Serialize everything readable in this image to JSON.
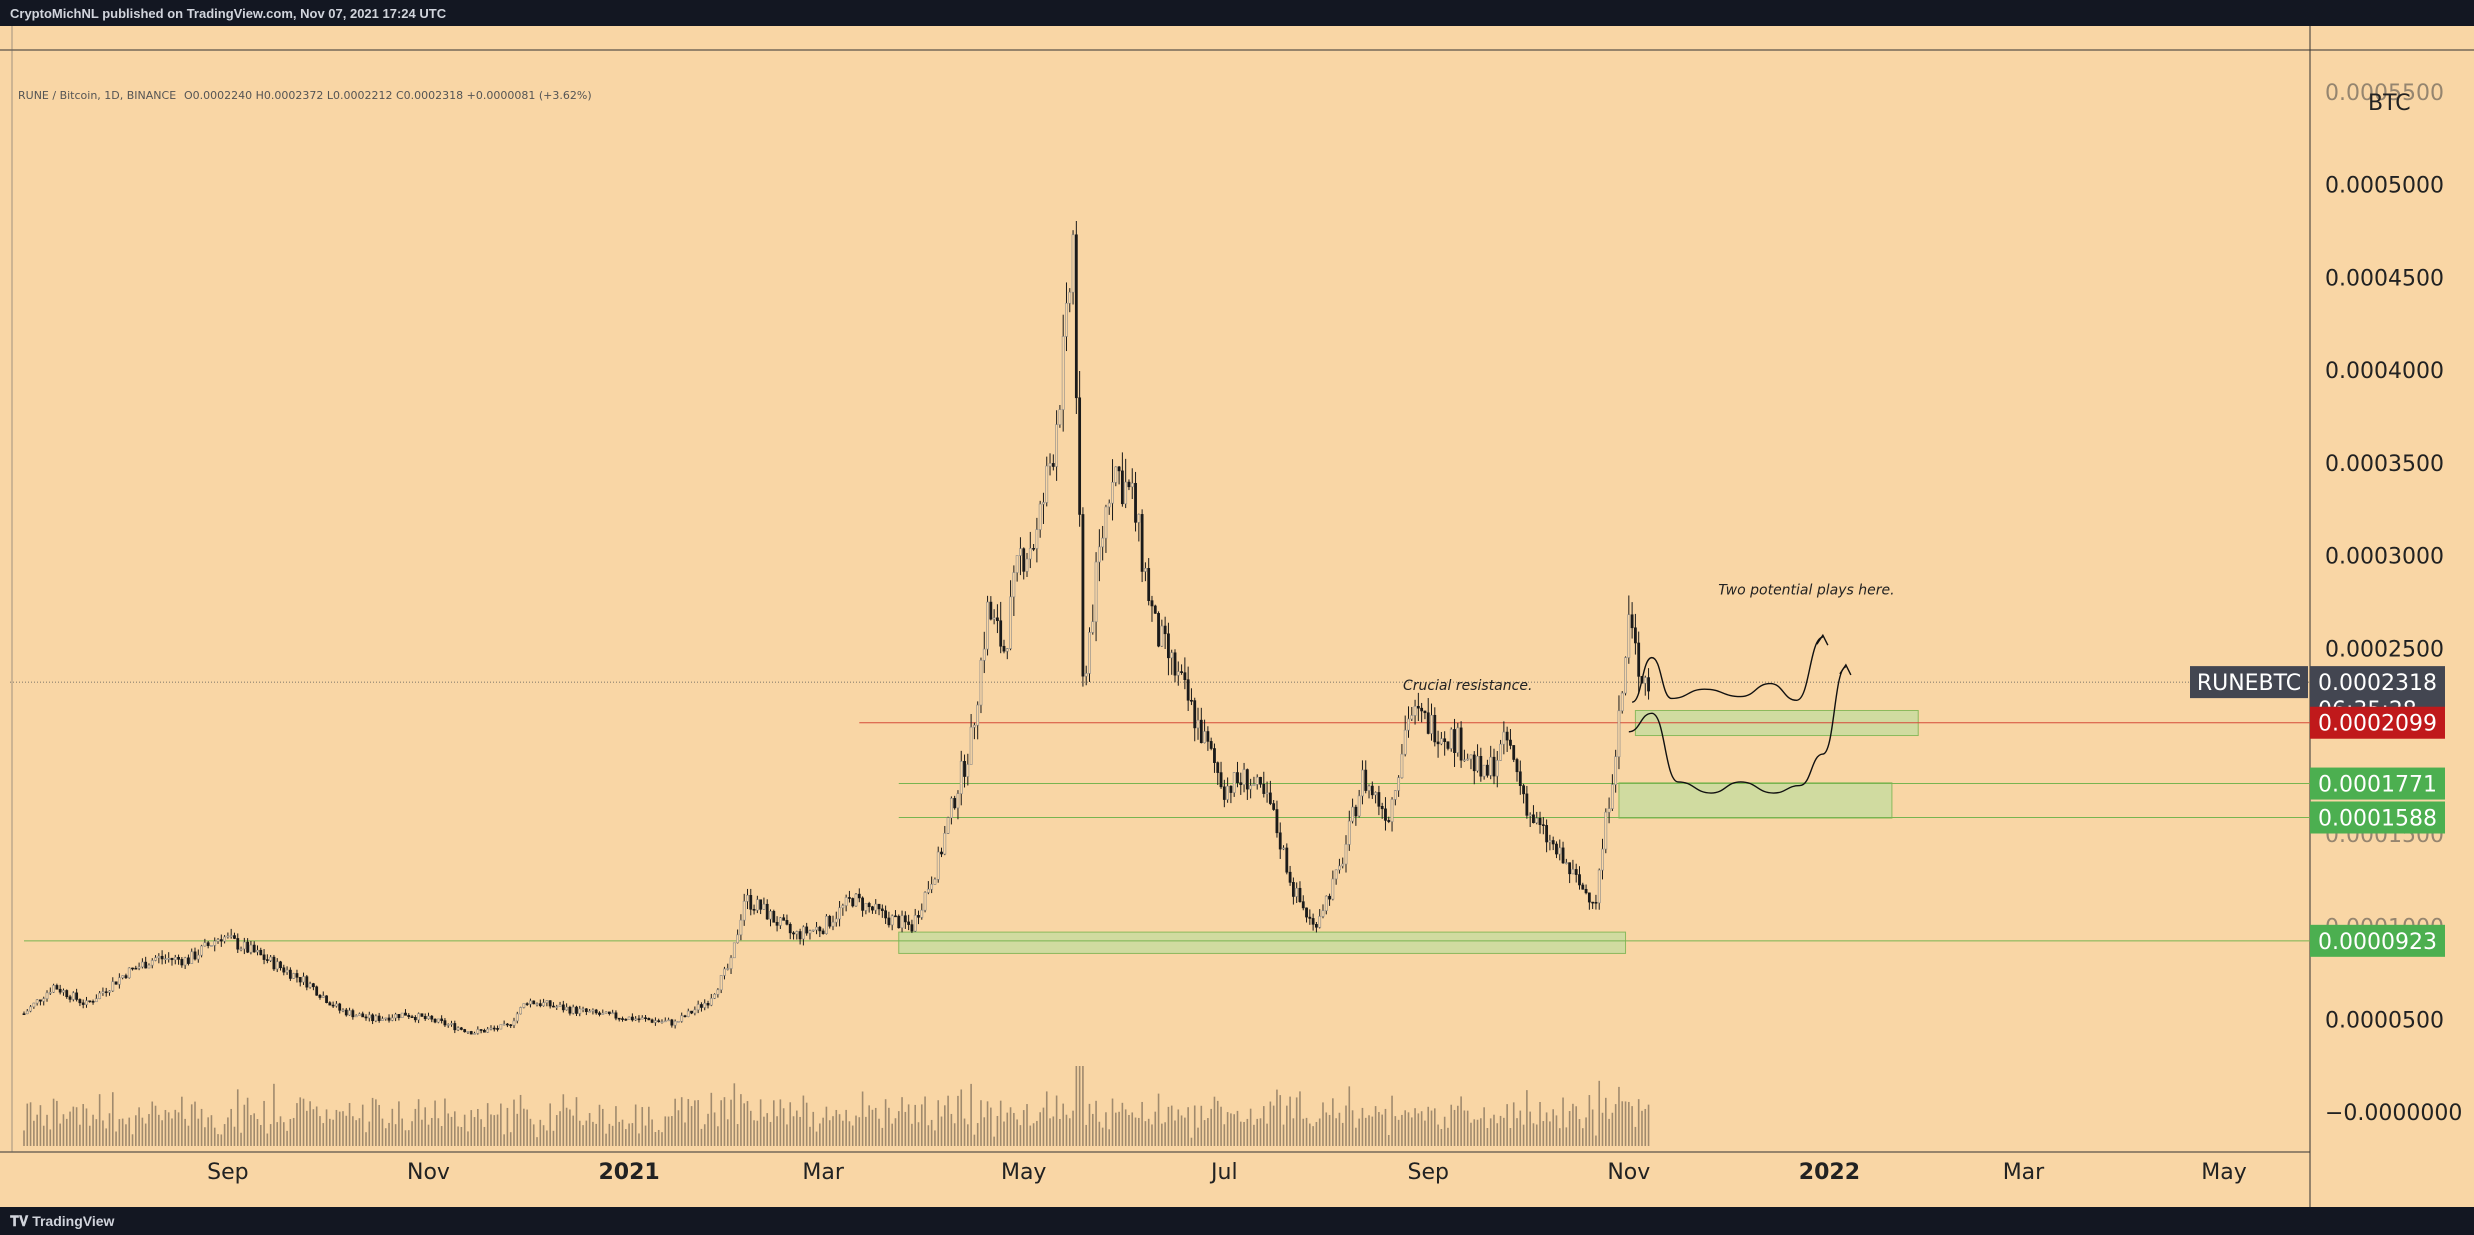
{
  "header": {
    "published_by": "CryptoMichNL published on TradingView.com, Nov 07, 2021 17:24 UTC"
  },
  "footer": {
    "brand": "TradingView",
    "logo_icon": "tradingview-logo-icon"
  },
  "legend": {
    "symbol": "RUNE / Bitcoin, 1D, BINANCE",
    "ohlc": [
      {
        "k": "O",
        "v": "0.0002240"
      },
      {
        "k": "H",
        "v": "0.0002372"
      },
      {
        "k": "L",
        "v": "0.0002212"
      },
      {
        "k": "C",
        "v": "0.0002318"
      }
    ],
    "change": "+0.0000081 (+3.62%)"
  },
  "colors": {
    "background": "#f9d6a5",
    "candle": "#1a1a1a",
    "candle_light": "#8a8a8a",
    "support_zone": "#c9dca0",
    "support_line": "#78b450",
    "resistance_line": "#d64b3a",
    "label_dark": "#434651",
    "label_red": "#c0191b",
    "label_green": "#4caf50"
  },
  "chart_data": {
    "type": "candlestick",
    "symbol": "RUNEBTC",
    "yunit": "BTC",
    "ylim": [
      -2e-05,
      0.00055
    ],
    "yticks": [
      "0.0005000",
      "0.0004500",
      "0.0004000",
      "0.0003500",
      "0.0003000",
      "0.0002500",
      "0.0000500",
      "−0.0000000"
    ],
    "partial_tick_labels": [
      "0.0005500",
      "0.0001500",
      "0.0001000"
    ],
    "x_start": "2020-07-01",
    "x_end": "2022-06-01",
    "xticks": [
      {
        "label": "Sep",
        "date": "2020-09-01",
        "bold": false
      },
      {
        "label": "Nov",
        "date": "2020-11-01",
        "bold": false
      },
      {
        "label": "2021",
        "date": "2021-01-01",
        "bold": true
      },
      {
        "label": "Mar",
        "date": "2021-03-01",
        "bold": false
      },
      {
        "label": "May",
        "date": "2021-05-01",
        "bold": false
      },
      {
        "label": "Jul",
        "date": "2021-07-01",
        "bold": false
      },
      {
        "label": "Sep",
        "date": "2021-09-01",
        "bold": false
      },
      {
        "label": "Nov",
        "date": "2021-11-01",
        "bold": false
      },
      {
        "label": "2022",
        "date": "2022-01-01",
        "bold": true
      },
      {
        "label": "Mar",
        "date": "2022-03-01",
        "bold": false
      },
      {
        "label": "May",
        "date": "2022-05-01",
        "bold": false
      }
    ],
    "price_path": [
      [
        "2020-07-01",
        5.3e-05
      ],
      [
        "2020-07-10",
        6.8e-05
      ],
      [
        "2020-07-20",
        5.8e-05
      ],
      [
        "2020-08-01",
        7.5e-05
      ],
      [
        "2020-08-10",
        8.3e-05
      ],
      [
        "2020-08-20",
        8.2e-05
      ],
      [
        "2020-08-30",
        9.5e-05
      ],
      [
        "2020-09-10",
        8.5e-05
      ],
      [
        "2020-09-25",
        7e-05
      ],
      [
        "2020-10-05",
        5.5e-05
      ],
      [
        "2020-10-15",
        5e-05
      ],
      [
        "2020-10-25",
        5.3e-05
      ],
      [
        "2020-11-05",
        4.8e-05
      ],
      [
        "2020-11-15",
        4.3e-05
      ],
      [
        "2020-11-25",
        4.6e-05
      ],
      [
        "2020-12-01",
        6e-05
      ],
      [
        "2020-12-15",
        5.5e-05
      ],
      [
        "2020-12-25",
        5.2e-05
      ],
      [
        "2021-01-05",
        5e-05
      ],
      [
        "2021-01-15",
        4.8e-05
      ],
      [
        "2021-01-25",
        6e-05
      ],
      [
        "2021-02-01",
        8e-05
      ],
      [
        "2021-02-05",
        0.000115
      ],
      [
        "2021-02-10",
        0.00011
      ],
      [
        "2021-02-20",
        9.5e-05
      ],
      [
        "2021-03-01",
        0.0001
      ],
      [
        "2021-03-10",
        0.000115
      ],
      [
        "2021-03-20",
        0.000105
      ],
      [
        "2021-03-28",
        0.0001
      ],
      [
        "2021-04-05",
        0.000135
      ],
      [
        "2021-04-10",
        0.00017
      ],
      [
        "2021-04-15",
        0.0002
      ],
      [
        "2021-04-20",
        0.00027
      ],
      [
        "2021-04-25",
        0.00025
      ],
      [
        "2021-04-30",
        0.0003
      ],
      [
        "2021-05-05",
        0.00031
      ],
      [
        "2021-05-10",
        0.00036
      ],
      [
        "2021-05-14",
        0.00042
      ],
      [
        "2021-05-16",
        0.00047
      ],
      [
        "2021-05-19",
        0.00023
      ],
      [
        "2021-05-24",
        0.0003
      ],
      [
        "2021-05-28",
        0.00035
      ],
      [
        "2021-06-03",
        0.00033
      ],
      [
        "2021-06-10",
        0.00026
      ],
      [
        "2021-06-18",
        0.00023
      ],
      [
        "2021-06-25",
        0.0002
      ],
      [
        "2021-07-01",
        0.000175
      ],
      [
        "2021-07-08",
        0.00018
      ],
      [
        "2021-07-15",
        0.000165
      ],
      [
        "2021-07-22",
        0.00012
      ],
      [
        "2021-07-28",
        0.0001
      ],
      [
        "2021-08-05",
        0.00013
      ],
      [
        "2021-08-12",
        0.00018
      ],
      [
        "2021-08-20",
        0.00016
      ],
      [
        "2021-08-26",
        0.000215
      ],
      [
        "2021-09-01",
        0.00021
      ],
      [
        "2021-09-10",
        0.0002
      ],
      [
        "2021-09-18",
        0.00018
      ],
      [
        "2021-09-25",
        0.0002
      ],
      [
        "2021-10-02",
        0.00016
      ],
      [
        "2021-10-10",
        0.00014
      ],
      [
        "2021-10-18",
        0.00012
      ],
      [
        "2021-10-22",
        0.000115
      ],
      [
        "2021-10-26",
        0.00017
      ],
      [
        "2021-10-30",
        0.000225
      ],
      [
        "2021-11-01",
        0.000265
      ],
      [
        "2021-11-04",
        0.00024
      ],
      [
        "2021-11-07",
        0.000232
      ]
    ],
    "levels": [
      {
        "name": "resistance",
        "value": 0.0002099,
        "label": "0.0002099",
        "color": "#c0191b"
      },
      {
        "name": "support-1",
        "value": 0.0001771,
        "label": "0.0001771",
        "color": "#4caf50"
      },
      {
        "name": "support-2",
        "value": 0.0001588,
        "label": "0.0001588",
        "color": "#4caf50"
      },
      {
        "name": "support-3",
        "value": 9.23e-05,
        "label": "0.0000923",
        "color": "#4caf50"
      }
    ],
    "last_price": {
      "value": 0.0002318,
      "label": "0.0002318",
      "symbol": "RUNEBTC",
      "countdown": "06:35:28"
    },
    "zones": [
      {
        "name": "zone-upper",
        "x0": "2021-11-03",
        "x1": "2022-01-28",
        "y0": 0.000203,
        "y1": 0.0002165
      },
      {
        "name": "zone-middle",
        "x0": "2021-10-29",
        "x1": "2022-01-20",
        "y0": 0.0001585,
        "y1": 0.0001775
      },
      {
        "name": "zone-lower",
        "x0": "2021-03-24",
        "x1": "2021-10-31",
        "y0": 8.55e-05,
        "y1": 9.7e-05
      }
    ],
    "annotations": [
      {
        "name": "annotation-crucial-resistance",
        "text": "Crucial resistance.",
        "date": "2021-09-13",
        "value": 0.0002275
      },
      {
        "name": "annotation-two-plays",
        "text": "Two potential plays here.",
        "date": "2021-12-25",
        "value": 0.000279
      }
    ],
    "projection_paths": [
      [
        [
          "2021-11-02",
          0.000221
        ],
        [
          "2021-11-08",
          0.000245
        ],
        [
          "2021-11-14",
          0.000223
        ],
        [
          "2021-11-24",
          0.000228
        ],
        [
          "2021-12-05",
          0.000224
        ],
        [
          "2021-12-14",
          0.000231
        ],
        [
          "2021-12-22",
          0.000222
        ],
        [
          "2021-12-30",
          0.000256
        ]
      ],
      [
        [
          "2021-11-01",
          0.000205
        ],
        [
          "2021-11-08",
          0.000215
        ],
        [
          "2021-11-16",
          0.000178
        ],
        [
          "2021-11-26",
          0.000172
        ],
        [
          "2021-12-05",
          0.000178
        ],
        [
          "2021-12-15",
          0.000172
        ],
        [
          "2021-12-23",
          0.000176
        ],
        [
          "2021-12-30",
          0.000193
        ],
        [
          "2022-01-06",
          0.00024
        ]
      ]
    ]
  }
}
